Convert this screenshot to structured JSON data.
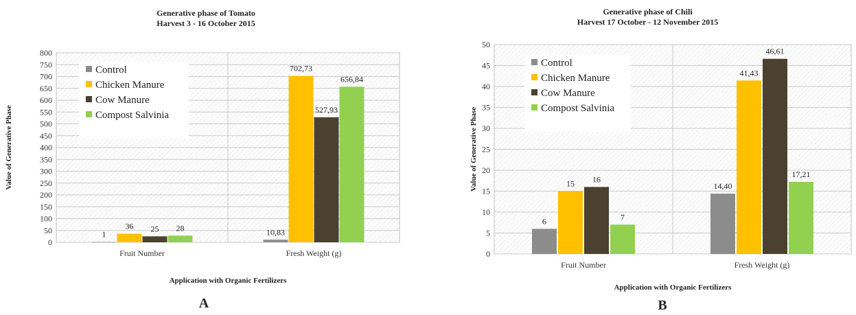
{
  "colors": {
    "control": "#8c8c8c",
    "chicken": "#ffc000",
    "cow": "#4a4130",
    "compost": "#92d050",
    "grid": "#c8c8c8"
  },
  "legend": [
    "Control",
    "Chicken Manure",
    "Cow Manure",
    "Compost Salvinia"
  ],
  "chart_data": [
    {
      "type": "bar",
      "id": "A",
      "panel_label": "A",
      "title": "Generative phase of Tomato",
      "subtitle": "Harvest 3 - 16 October 2015",
      "xlabel": "Application with Organic Fertilizers",
      "ylabel": "Value of Generative Phase",
      "categories": [
        "Fruit Number",
        "Fresh Weight (g)"
      ],
      "ylim": [
        0,
        800
      ],
      "yticks": [
        0,
        50,
        100,
        150,
        200,
        250,
        300,
        350,
        400,
        450,
        500,
        550,
        600,
        650,
        700,
        750,
        800
      ],
      "legend_position": "top-left",
      "series": [
        {
          "name": "Control",
          "values": [
            1,
            10.83
          ],
          "labels": [
            "1",
            "10,83"
          ]
        },
        {
          "name": "Chicken Manure",
          "values": [
            36,
            702.73
          ],
          "labels": [
            "36",
            "702,73"
          ]
        },
        {
          "name": "Cow Manure",
          "values": [
            25,
            527.93
          ],
          "labels": [
            "25",
            "527,93"
          ]
        },
        {
          "name": "Compost Salvinia",
          "values": [
            28,
            656.84
          ],
          "labels": [
            "28",
            "656,84"
          ]
        }
      ]
    },
    {
      "type": "bar",
      "id": "B",
      "panel_label": "B",
      "title": "Generative phase of Chili",
      "subtitle": "Harvest 17 October - 12 November 2015",
      "xlabel": "Application with Organic Fertilizers",
      "ylabel": "Value of Generative Phase",
      "categories": [
        "Fruit Number",
        "Fresh Weight (g)"
      ],
      "ylim": [
        0,
        50
      ],
      "yticks": [
        0,
        5,
        10,
        15,
        20,
        25,
        30,
        35,
        40,
        45,
        50
      ],
      "legend_position": "top-left",
      "series": [
        {
          "name": "Control",
          "values": [
            6,
            14.4
          ],
          "labels": [
            "6",
            "14,40"
          ]
        },
        {
          "name": "Chicken Manure",
          "values": [
            15,
            41.43
          ],
          "labels": [
            "15",
            "41,43"
          ]
        },
        {
          "name": "Cow Manure",
          "values": [
            16,
            46.61
          ],
          "labels": [
            "16",
            "46,61"
          ]
        },
        {
          "name": "Compost Salvinia",
          "values": [
            7,
            17.21
          ],
          "labels": [
            "7",
            "17,21"
          ]
        }
      ]
    }
  ]
}
